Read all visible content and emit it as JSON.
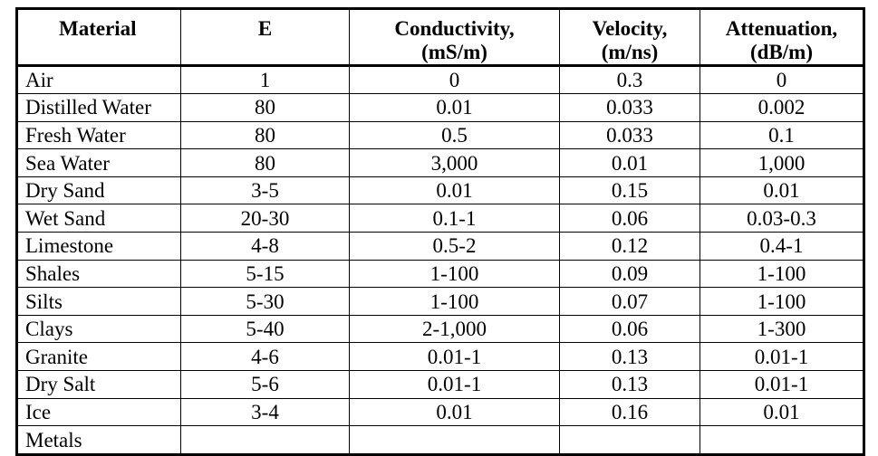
{
  "table": {
    "headers": [
      {
        "line1": "Material",
        "line2": ""
      },
      {
        "line1": "E",
        "line2": ""
      },
      {
        "line1": "Conductivity,",
        "line2": "(mS/m)"
      },
      {
        "line1": "Velocity,",
        "line2": "(m/ns)"
      },
      {
        "line1": "Attenuation,",
        "line2": "(dB/m)"
      }
    ],
    "rows": [
      [
        "Air",
        "1",
        "0",
        "0.3",
        "0"
      ],
      [
        "Distilled Water",
        "80",
        "0.01",
        "0.033",
        "0.002"
      ],
      [
        "Fresh Water",
        "80",
        "0.5",
        "0.033",
        "0.1"
      ],
      [
        "Sea Water",
        "80",
        "3,000",
        "0.01",
        "1,000"
      ],
      [
        "Dry Sand",
        "3-5",
        "0.01",
        "0.15",
        "0.01"
      ],
      [
        "Wet Sand",
        "20-30",
        "0.1-1",
        "0.06",
        "0.03-0.3"
      ],
      [
        "Limestone",
        "4-8",
        "0.5-2",
        "0.12",
        "0.4-1"
      ],
      [
        "Shales",
        "5-15",
        "1-100",
        "0.09",
        "1-100"
      ],
      [
        "Silts",
        "5-30",
        "1-100",
        "0.07",
        "1-100"
      ],
      [
        "Clays",
        "5-40",
        "2-1,000",
        "0.06",
        "1-300"
      ],
      [
        "Granite",
        "4-6",
        "0.01-1",
        "0.13",
        "0.01-1"
      ],
      [
        "Dry Salt",
        "5-6",
        "0.01-1",
        "0.13",
        "0.01-1"
      ],
      [
        "Ice",
        "3-4",
        "0.01",
        "0.16",
        "0.01"
      ],
      [
        "Metals",
        "",
        "",
        "",
        ""
      ]
    ]
  }
}
